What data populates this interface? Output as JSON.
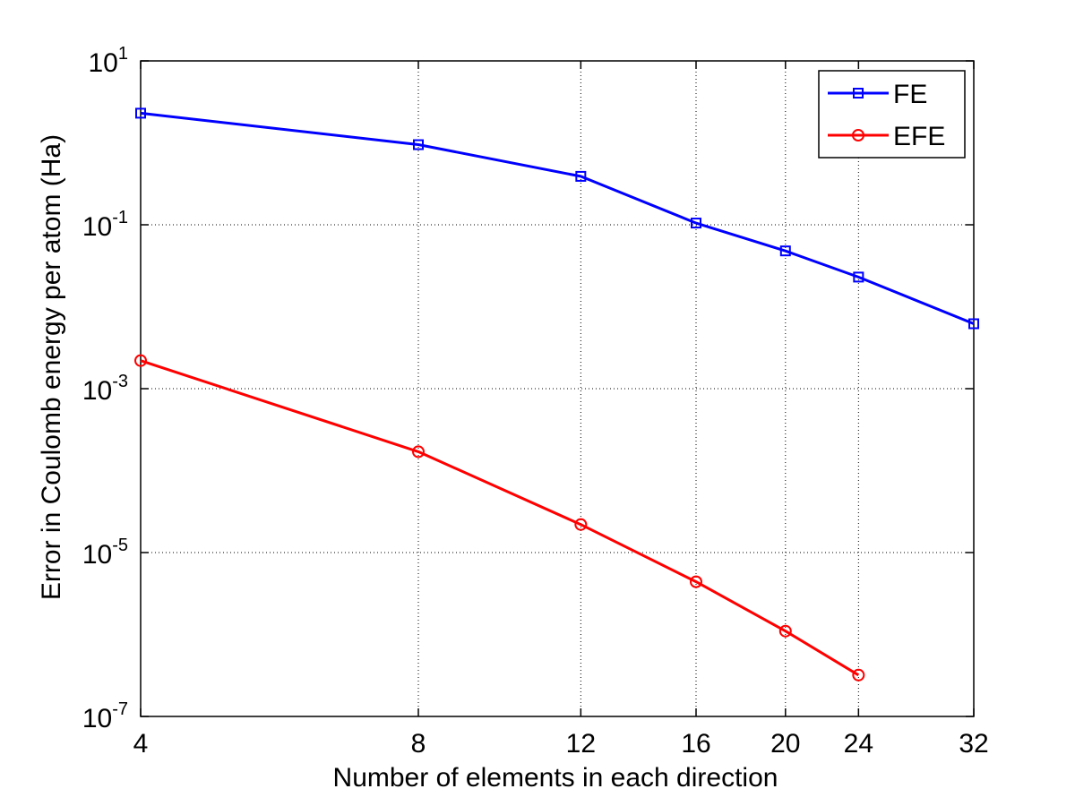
{
  "chart_data": {
    "type": "line",
    "title": "",
    "xlabel": "Number of elements in each direction",
    "ylabel": "Error in Coulomb energy per atom (Ha)",
    "xscale": "log",
    "yscale": "log",
    "xlim": [
      4,
      32
    ],
    "ylim": [
      1e-07,
      10
    ],
    "grid": true,
    "legend_position": "top-right",
    "xticks": [
      4,
      8,
      12,
      16,
      20,
      24,
      32
    ],
    "xtick_labels": [
      "4",
      "8",
      "12",
      "16",
      "20",
      "24",
      "32"
    ],
    "yticks": [
      {
        "value": 10,
        "base": "10",
        "exp": "1"
      },
      {
        "value": 0.1,
        "base": "10",
        "exp": "-1"
      },
      {
        "value": 0.001,
        "base": "10",
        "exp": "-3"
      },
      {
        "value": 1e-05,
        "base": "10",
        "exp": "-5"
      },
      {
        "value": 1e-07,
        "base": "10",
        "exp": "-7"
      }
    ],
    "series": [
      {
        "name": "FE",
        "color": "#0000ff",
        "marker": "square",
        "x": [
          4,
          8,
          12,
          16,
          20,
          24,
          32
        ],
        "y": [
          2.3,
          0.95,
          0.39,
          0.105,
          0.048,
          0.023,
          0.0062
        ]
      },
      {
        "name": "EFE",
        "color": "#ff0000",
        "marker": "circle",
        "x": [
          4,
          8,
          12,
          16,
          20,
          24
        ],
        "y": [
          0.0022,
          0.00017,
          2.2e-05,
          4.4e-06,
          1.1e-06,
          3.2e-07
        ]
      }
    ]
  }
}
